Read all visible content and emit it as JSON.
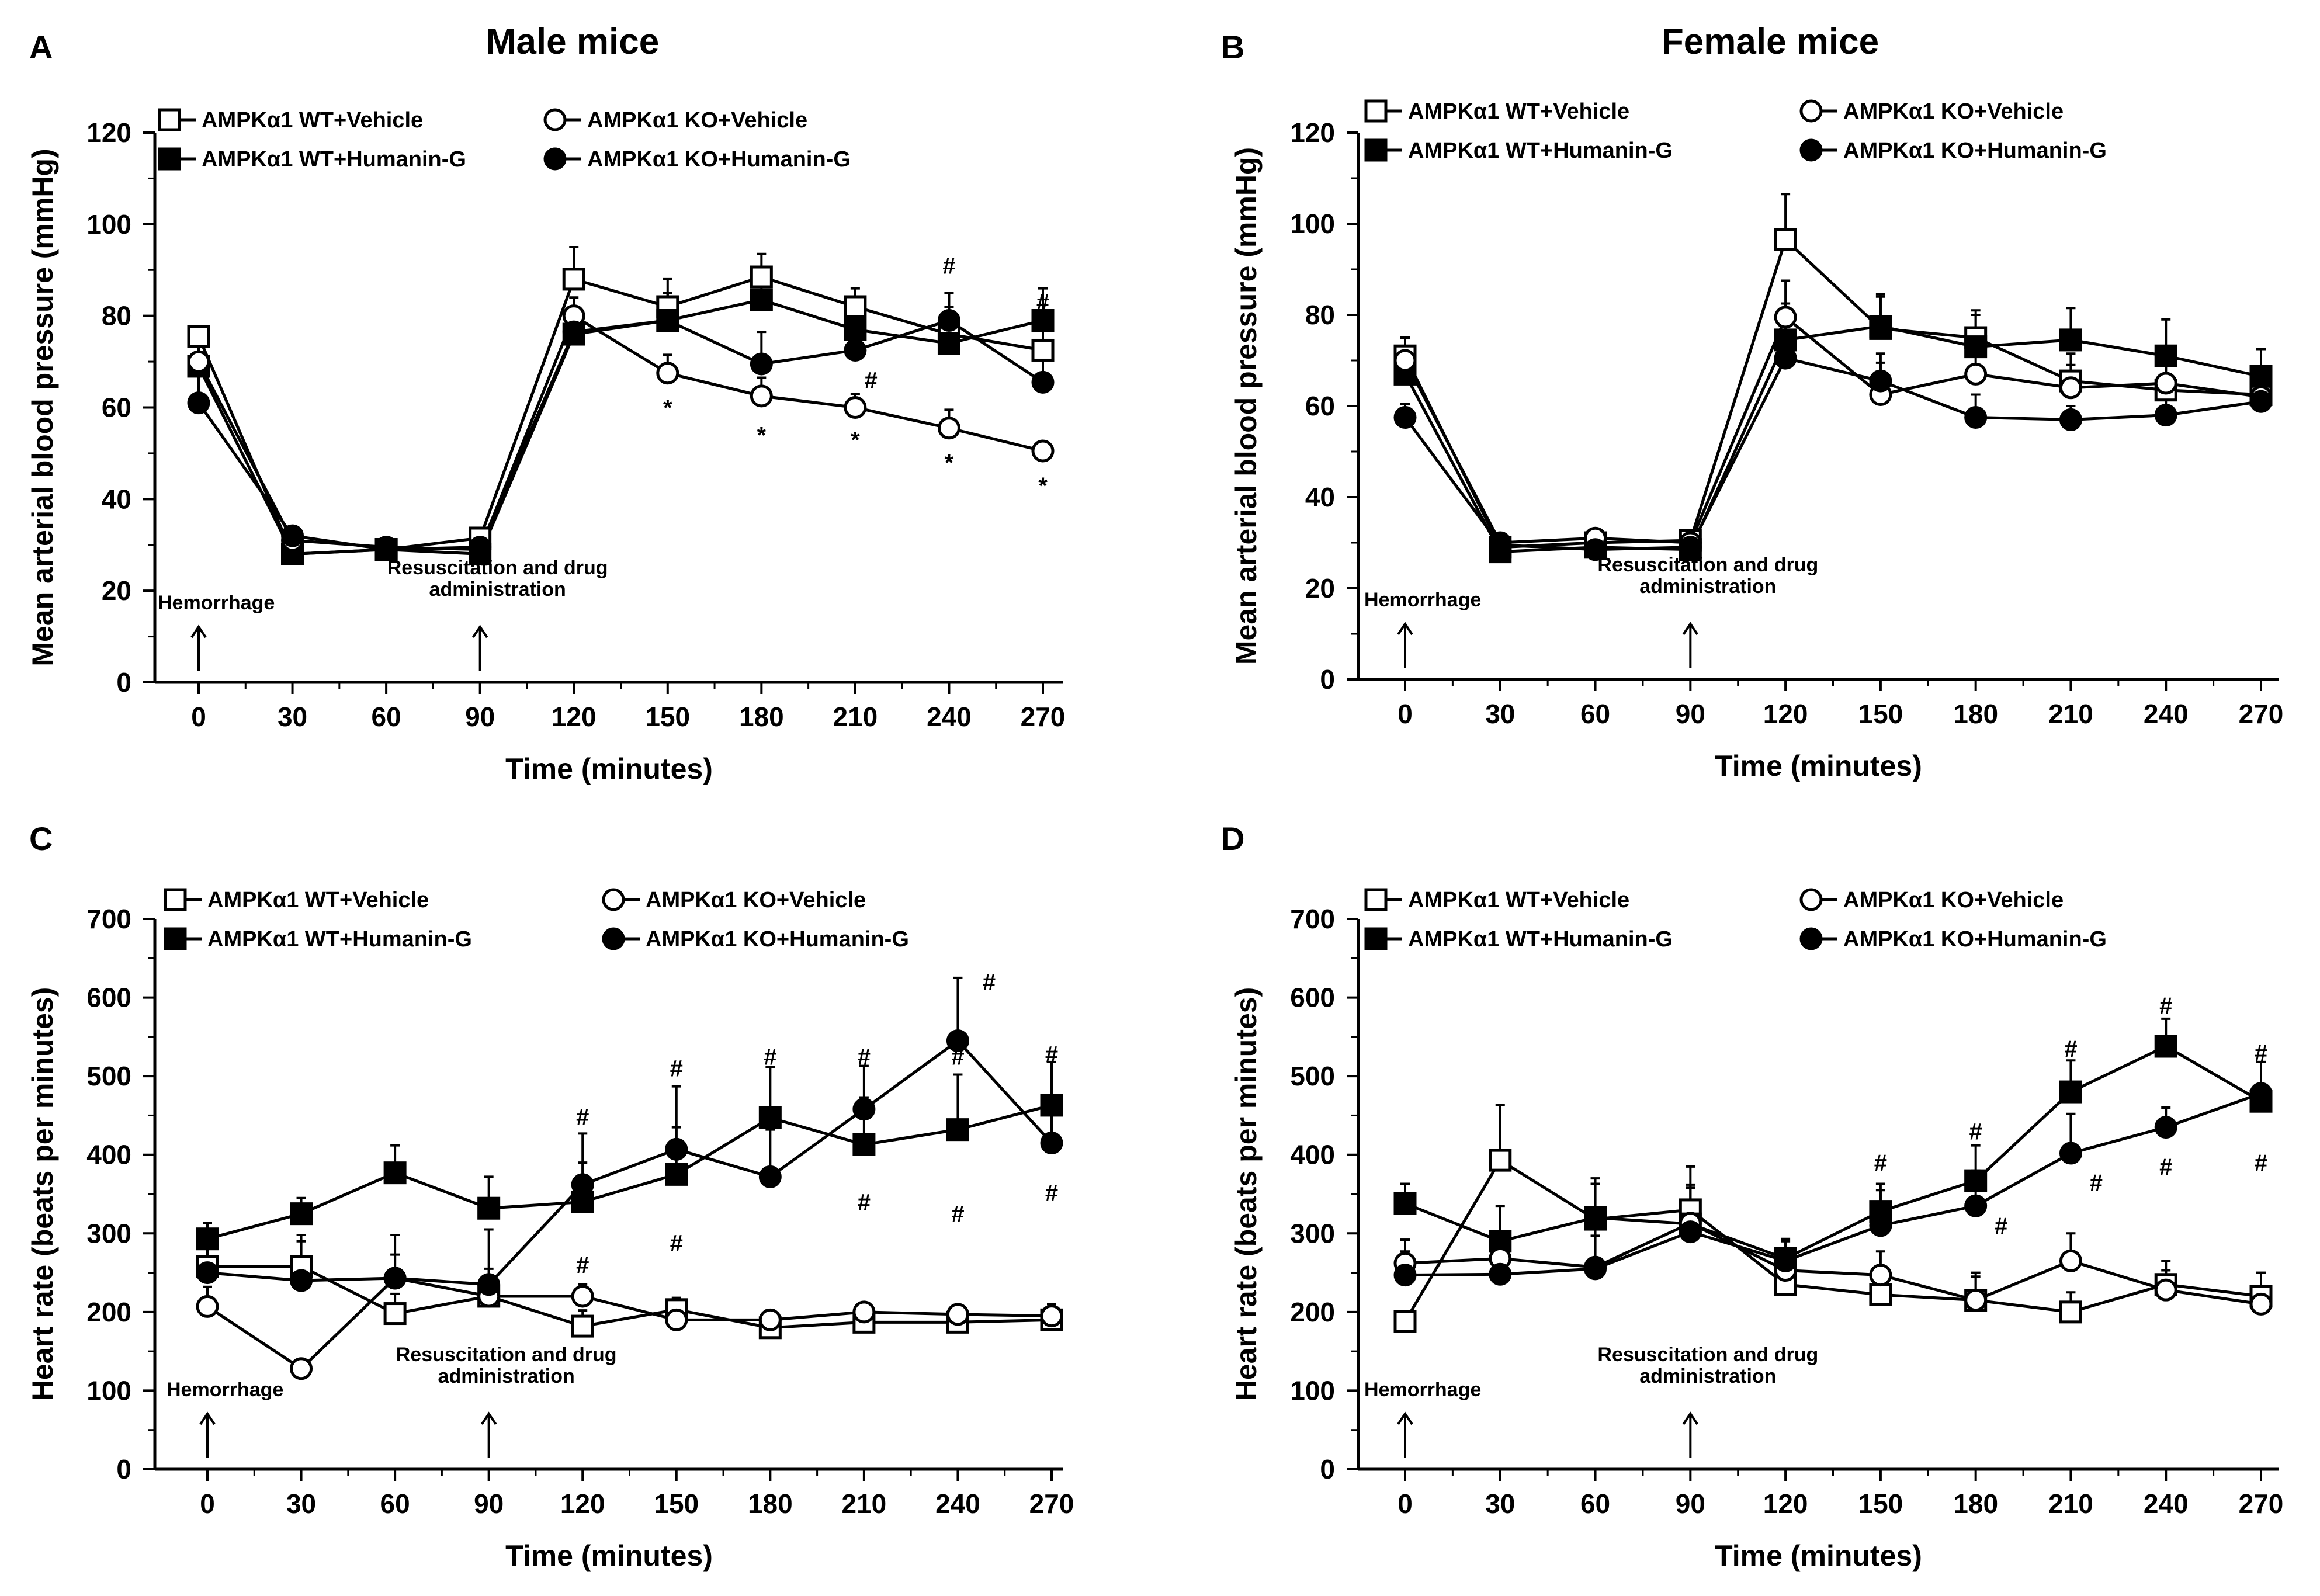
{
  "chart_data": [
    {
      "panel": "A",
      "title": "Male mice",
      "type": "line",
      "xlabel": "Time (minutes)",
      "ylabel": "Mean arterial blood pressure (mmHg)",
      "x": [
        0,
        30,
        60,
        90,
        120,
        150,
        180,
        210,
        240,
        270
      ],
      "xticks": [
        "0",
        "30",
        "60",
        "90",
        "120",
        "150",
        "180",
        "210",
        "240",
        "270"
      ],
      "ylim": [
        0,
        120
      ],
      "yticks": [
        "0",
        "20",
        "40",
        "60",
        "80",
        "100",
        "120"
      ],
      "annotations": [
        {
          "text": "Hemorrhage",
          "x": 0
        },
        {
          "text": "Resuscitation and drug",
          "text2": "administration",
          "x": 90
        }
      ],
      "series": [
        {
          "name": "AMPKα1 WT+Vehicle",
          "marker": "square-open",
          "values": [
            75.5,
            28,
            29,
            31.5,
            88,
            82,
            88.5,
            82,
            76,
            72.5
          ],
          "errors": [
            0,
            0,
            0,
            0,
            7,
            6,
            5,
            4,
            6,
            6
          ]
        },
        {
          "name": "AMPKα1 WT+Humanin-G",
          "marker": "square-filled",
          "values": [
            69,
            28,
            29,
            28,
            76,
            79,
            83.5,
            77,
            74,
            79
          ],
          "errors": [
            6,
            0,
            0,
            0,
            5,
            6,
            6,
            5,
            5,
            7
          ]
        },
        {
          "name": "AMPKα1 KO+Vehicle",
          "marker": "circle-open",
          "values": [
            70,
            31,
            29.5,
            29,
            80,
            67.5,
            62.5,
            60,
            55.5,
            50.5
          ],
          "errors": [
            5,
            0,
            0,
            0,
            4,
            4,
            4,
            3,
            4,
            2
          ]
        },
        {
          "name": "AMPKα1 KO+Humanin-G",
          "marker": "circle-filled",
          "values": [
            61,
            32,
            29,
            29.5,
            76.5,
            79,
            69.5,
            72.5,
            79,
            65.5
          ],
          "errors": [
            8,
            0,
            0,
            0,
            5,
            6,
            7,
            6,
            6,
            5
          ]
        }
      ],
      "sig_marks": [
        {
          "text": "*",
          "x": 150,
          "y": 60
        },
        {
          "text": "*",
          "x": 180,
          "y": 54
        },
        {
          "text": "*",
          "x": 210,
          "y": 53
        },
        {
          "text": "*",
          "x": 240,
          "y": 48
        },
        {
          "text": "*",
          "x": 270,
          "y": 43
        },
        {
          "text": "#",
          "x": 215,
          "y": 66
        },
        {
          "text": "#",
          "x": 240,
          "y": 91
        },
        {
          "text": "#",
          "x": 270,
          "y": 83
        }
      ]
    },
    {
      "panel": "B",
      "title": "Female mice",
      "type": "line",
      "xlabel": "Time (minutes)",
      "ylabel": "Mean arterial blood pressure (mmHg)",
      "x": [
        0,
        30,
        60,
        90,
        120,
        150,
        180,
        210,
        240,
        270
      ],
      "xticks": [
        "0",
        "30",
        "60",
        "90",
        "120",
        "150",
        "180",
        "210",
        "240",
        "270"
      ],
      "ylim": [
        0,
        120
      ],
      "yticks": [
        "0",
        "20",
        "40",
        "60",
        "80",
        "100",
        "120"
      ],
      "annotations": [
        {
          "text": "Hemorrhage",
          "x": 0
        },
        {
          "text": "Resuscitation and drug",
          "text2": "administration",
          "x": 90
        }
      ],
      "series": [
        {
          "name": "AMPKα1 WT+Vehicle",
          "marker": "square-open",
          "values": [
            71,
            29,
            30,
            30.5,
            96.5,
            77,
            75,
            65.5,
            63.5,
            62.5
          ],
          "errors": [
            4,
            0,
            0,
            0,
            10,
            7,
            6,
            6,
            6,
            5
          ]
        },
        {
          "name": "AMPKα1 WT+Humanin-G",
          "marker": "square-filled",
          "values": [
            67,
            28,
            29,
            28.5,
            74.5,
            77.5,
            73,
            74.5,
            71,
            66.5
          ],
          "errors": [
            5,
            0,
            0,
            0,
            8,
            7,
            7,
            7,
            8,
            6
          ]
        },
        {
          "name": "AMPKα1 KO+Vehicle",
          "marker": "circle-open",
          "values": [
            70,
            30,
            31,
            30,
            79.5,
            62.5,
            67,
            64,
            65,
            62
          ],
          "errors": [
            5,
            0,
            0,
            0,
            8,
            7,
            5,
            5,
            5,
            5
          ]
        },
        {
          "name": "AMPKα1 KO+Humanin-G",
          "marker": "circle-filled",
          "values": [
            57.5,
            29.5,
            28.5,
            29,
            70.5,
            65.5,
            57.5,
            57,
            58,
            61
          ],
          "errors": [
            3,
            0,
            0,
            0,
            6,
            6,
            5,
            3,
            4,
            4
          ]
        }
      ],
      "sig_marks": []
    },
    {
      "panel": "C",
      "title": "",
      "type": "line",
      "xlabel": "Time (minutes)",
      "ylabel": "Heart rate (beats per minutes)",
      "x": [
        0,
        30,
        60,
        90,
        120,
        150,
        180,
        210,
        240,
        270
      ],
      "xticks": [
        "0",
        "30",
        "60",
        "90",
        "120",
        "150",
        "180",
        "210",
        "240",
        "270"
      ],
      "ylim": [
        0,
        700
      ],
      "yticks": [
        "0",
        "100",
        "200",
        "300",
        "400",
        "500",
        "600",
        "700"
      ],
      "annotations": [
        {
          "text": "Hemorrhage",
          "x": 0
        },
        {
          "text": "Resuscitation and drug",
          "text2": "administration",
          "x": 90
        }
      ],
      "series": [
        {
          "name": "AMPKα1 WT+Vehicle",
          "marker": "square-open",
          "values": [
            258,
            258,
            198,
            220,
            182,
            203,
            180,
            187,
            187,
            190
          ],
          "errors": [
            30,
            40,
            25,
            35,
            20,
            15,
            12,
            12,
            10,
            15
          ]
        },
        {
          "name": "AMPKα1 WT+Humanin-G",
          "marker": "square-filled",
          "values": [
            293,
            325,
            377,
            332,
            340,
            375,
            447,
            413,
            432,
            463
          ],
          "errors": [
            20,
            20,
            35,
            40,
            50,
            60,
            65,
            60,
            70,
            55
          ]
        },
        {
          "name": "AMPKα1 KO+Vehicle",
          "marker": "circle-open",
          "values": [
            207,
            128,
            243,
            220,
            220,
            190,
            190,
            200,
            197,
            195
          ],
          "errors": [
            25,
            5,
            30,
            20,
            15,
            10,
            12,
            10,
            10,
            15
          ]
        },
        {
          "name": "AMPKα1 KO+Humanin-G",
          "marker": "circle-filled",
          "values": [
            250,
            240,
            243,
            235,
            362,
            407,
            372,
            458,
            545,
            415
          ],
          "errors": [
            40,
            50,
            55,
            70,
            65,
            80,
            60,
            55,
            80,
            50
          ]
        }
      ],
      "sig_marks": [
        {
          "text": "#",
          "x": 120,
          "y": 448
        },
        {
          "text": "#",
          "x": 120,
          "y": 260
        },
        {
          "text": "#",
          "x": 150,
          "y": 510
        },
        {
          "text": "#",
          "x": 150,
          "y": 288
        },
        {
          "text": "#",
          "x": 180,
          "y": 525
        },
        {
          "text": "#",
          "x": 210,
          "y": 525
        },
        {
          "text": "#",
          "x": 210,
          "y": 340
        },
        {
          "text": "#",
          "x": 240,
          "y": 525
        },
        {
          "text": "#",
          "x": 240,
          "y": 325
        },
        {
          "text": "#",
          "x": 250,
          "y": 620
        },
        {
          "text": "#",
          "x": 270,
          "y": 528
        },
        {
          "text": "#",
          "x": 270,
          "y": 352
        }
      ]
    },
    {
      "panel": "D",
      "title": "",
      "type": "line",
      "xlabel": "Time (minutes)",
      "ylabel": "Heart rate (beats per minutes)",
      "x": [
        0,
        30,
        60,
        90,
        120,
        150,
        180,
        210,
        240,
        270
      ],
      "xticks": [
        "0",
        "30",
        "60",
        "90",
        "120",
        "150",
        "180",
        "210",
        "240",
        "270"
      ],
      "ylim": [
        0,
        700
      ],
      "yticks": [
        "0",
        "100",
        "200",
        "300",
        "400",
        "500",
        "600",
        "700"
      ],
      "annotations": [
        {
          "text": "Hemorrhage",
          "x": 0
        },
        {
          "text": "Resuscitation and drug",
          "text2": "administration",
          "x": 90
        }
      ],
      "series": [
        {
          "name": "AMPKα1 WT+Vehicle",
          "marker": "square-open",
          "values": [
            188,
            393,
            318,
            330,
            235,
            222,
            215,
            200,
            235,
            220
          ],
          "errors": [
            10,
            70,
            45,
            55,
            25,
            25,
            30,
            25,
            30,
            30
          ]
        },
        {
          "name": "AMPKα1 WT+Humanin-G",
          "marker": "square-filled",
          "values": [
            338,
            290,
            320,
            312,
            268,
            328,
            367,
            480,
            538,
            468
          ],
          "errors": [
            25,
            45,
            50,
            50,
            25,
            35,
            45,
            40,
            35,
            50
          ]
        },
        {
          "name": "AMPKα1 KO+Vehicle",
          "marker": "circle-open",
          "values": [
            262,
            268,
            257,
            313,
            253,
            247,
            215,
            265,
            228,
            210
          ],
          "errors": [
            30,
            30,
            40,
            45,
            25,
            30,
            35,
            35,
            25,
            20
          ]
        },
        {
          "name": "AMPKα1 KO+Humanin-G",
          "marker": "circle-filled",
          "values": [
            247,
            248,
            255,
            302,
            265,
            310,
            335,
            402,
            435,
            478
          ],
          "errors": [
            30,
            40,
            50,
            40,
            25,
            45,
            45,
            50,
            25,
            40
          ]
        }
      ],
      "sig_marks": [
        {
          "text": "#",
          "x": 150,
          "y": 390
        },
        {
          "text": "#",
          "x": 180,
          "y": 430
        },
        {
          "text": "#",
          "x": 188,
          "y": 310
        },
        {
          "text": "#",
          "x": 210,
          "y": 535
        },
        {
          "text": "#",
          "x": 218,
          "y": 365
        },
        {
          "text": "#",
          "x": 240,
          "y": 590
        },
        {
          "text": "#",
          "x": 240,
          "y": 385
        },
        {
          "text": "#",
          "x": 270,
          "y": 530
        },
        {
          "text": "#",
          "x": 270,
          "y": 390
        }
      ]
    }
  ]
}
